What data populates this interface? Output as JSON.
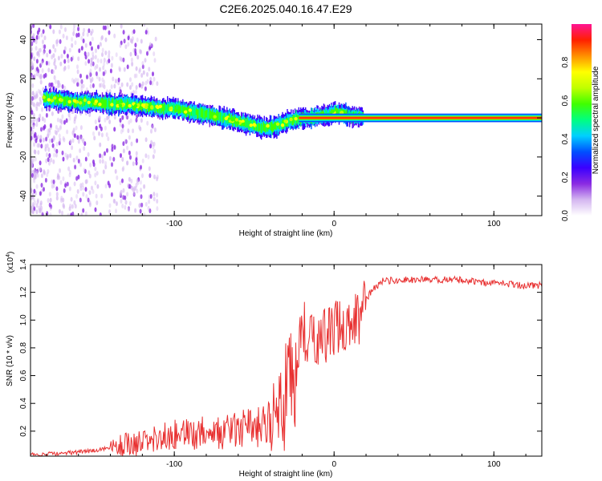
{
  "title": "C2E6.2025.040.16.47.E29",
  "chart_data": [
    {
      "type": "heatmap",
      "xlabel": "Height of straight line (km)",
      "ylabel": "Frequency (Hz)",
      "xlim": [
        -190,
        130
      ],
      "ylim": [
        -50,
        48
      ],
      "xticks": [
        -100,
        0,
        100
      ],
      "yticks": [
        -40,
        -20,
        0,
        20,
        40
      ],
      "colorbar": {
        "label": "Normalized spectral amplitude",
        "range": [
          0,
          1
        ],
        "ticks": [
          0.0,
          0.2,
          0.4,
          0.6,
          0.8
        ],
        "tick_labels": [
          "0.0",
          "0.2",
          "0.4",
          "0.6",
          "0.8"
        ],
        "colors": [
          "#ffffff",
          "#d4b6f0",
          "#8a2be2",
          "#3a00ff",
          "#0050ff",
          "#00d0ff",
          "#00ff80",
          "#40ff00",
          "#c0ff00",
          "#ffff00",
          "#ff9000",
          "#ff2000",
          "#ff1493"
        ]
      },
      "ridge": {
        "x": [
          -180,
          -170,
          -160,
          -150,
          -140,
          -130,
          -120,
          -110,
          -100,
          -90,
          -80,
          -70,
          -60,
          -50,
          -45,
          -40,
          -35,
          -30,
          -25,
          -20,
          -15,
          -10,
          -5,
          0,
          5,
          10,
          20,
          130
        ],
        "frequency": [
          10,
          9,
          8,
          8,
          7,
          7,
          6,
          5,
          5,
          3,
          2,
          0,
          -2,
          -4,
          -5,
          -5,
          -4,
          -2,
          -1,
          0,
          0,
          1,
          1,
          3,
          2,
          1,
          0,
          0
        ]
      }
    },
    {
      "type": "line",
      "xlabel": "Height of straight line (km)",
      "ylabel": "SNR (10 * v/v)",
      "scale_label": "(x10",
      "scale_exponent": "4",
      "xlim": [
        -190,
        130
      ],
      "ylim": [
        0.02,
        1.4
      ],
      "xticks": [
        -100,
        0,
        100
      ],
      "yticks": [
        0.2,
        0.4,
        0.6,
        0.8,
        1.0,
        1.2,
        1.4
      ],
      "ytick_labels": [
        "0.2",
        "0.4",
        "0.6",
        "0.8",
        "1.0",
        "1.2",
        "1.4"
      ],
      "color": "#e83030",
      "x": [
        -190,
        -170,
        -150,
        -140,
        -130,
        -120,
        -110,
        -100,
        -90,
        -80,
        -70,
        -60,
        -50,
        -45,
        -40,
        -35,
        -32,
        -30,
        -28,
        -25,
        -22,
        -20,
        -15,
        -10,
        -5,
        0,
        5,
        10,
        15,
        20,
        25,
        30,
        40,
        60,
        80,
        88,
        90,
        92,
        100,
        110,
        120,
        130
      ],
      "y": [
        0.03,
        0.04,
        0.06,
        0.08,
        0.1,
        0.12,
        0.15,
        0.17,
        0.18,
        0.19,
        0.2,
        0.21,
        0.22,
        0.24,
        0.27,
        0.3,
        0.25,
        0.55,
        0.8,
        0.4,
        0.7,
        0.8,
        0.85,
        0.88,
        0.9,
        0.92,
        0.95,
        0.97,
        1.03,
        1.15,
        1.23,
        1.28,
        1.29,
        1.29,
        1.29,
        1.28,
        1.3,
        1.27,
        1.27,
        1.26,
        1.25,
        1.25
      ]
    }
  ]
}
